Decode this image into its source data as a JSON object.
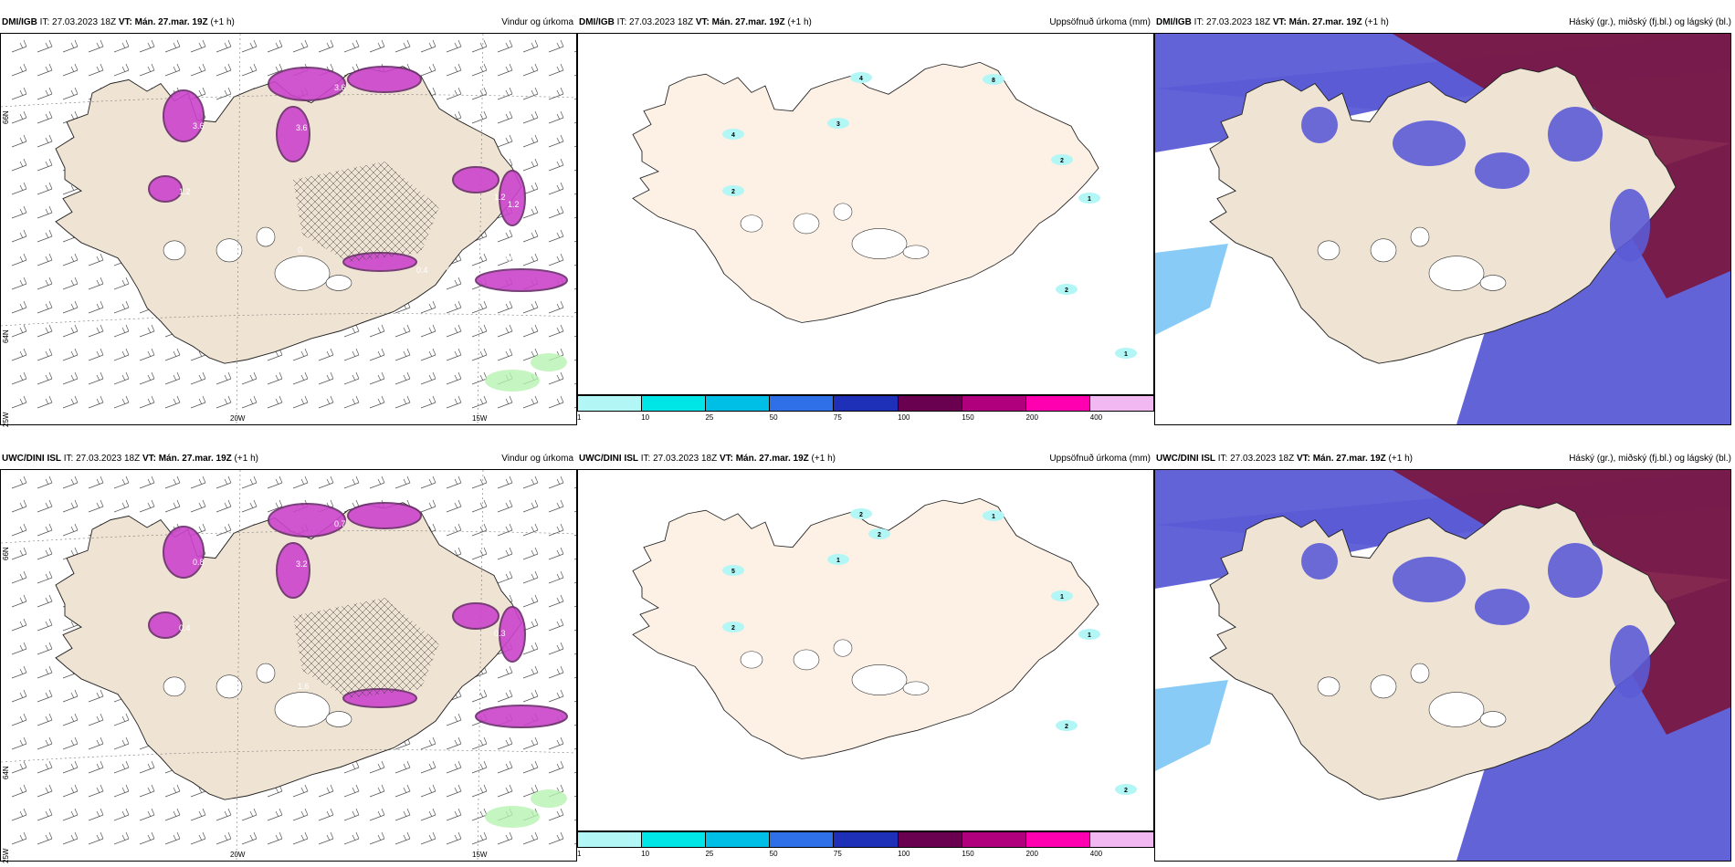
{
  "panels": [
    {
      "source": "DMI/IGB",
      "it": " IT: 27.03.2023 18Z ",
      "vt": "VT: Mán. 27.mar. 19Z",
      "lead": " (+1 h)",
      "title": "Vindur og úrkoma",
      "kind": "wind"
    },
    {
      "source": "DMI/IGB",
      "it": " IT: 27.03.2023 18Z ",
      "vt": "VT: Mán. 27.mar. 19Z",
      "lead": " (+1 h)",
      "title": "Uppsöfnuð úrkoma (mm)",
      "kind": "precip"
    },
    {
      "source": "DMI/IGB",
      "it": " IT: 27.03.2023 18Z ",
      "vt": "VT: Mán. 27.mar. 19Z",
      "lead": " (+1 h)",
      "title": "Háský (gr.), miðský (fj.bl.) og lágský (bl.)",
      "kind": "cloud"
    },
    {
      "source": "UWC/DINI ISL",
      "it": " IT: 27.03.2023 18Z ",
      "vt": "VT: Mán. 27.mar. 19Z",
      "lead": " (+1 h)",
      "title": "Vindur og úrkoma",
      "kind": "wind"
    },
    {
      "source": "UWC/DINI ISL",
      "it": " IT: 27.03.2023 18Z ",
      "vt": "VT: Mán. 27.mar. 19Z",
      "lead": " (+1 h)",
      "title": "Uppsöfnuð úrkoma (mm)",
      "kind": "precip"
    },
    {
      "source": "UWC/DINI ISL",
      "it": " IT: 27.03.2023 18Z ",
      "vt": "VT: Mán. 27.mar. 19Z",
      "lead": " (+1 h)",
      "title": "Háský (gr.), miðský (fj.bl.) og lágský (bl.)",
      "kind": "cloud"
    }
  ],
  "axes": {
    "lon_labels": [
      "20W",
      "15W"
    ],
    "lat_labels": [
      "66N",
      "64N",
      "25W"
    ]
  },
  "colorbar": {
    "ticks": [
      "1",
      "10",
      "25",
      "50",
      "75",
      "100",
      "150",
      "200",
      "400"
    ],
    "colors": [
      "#b2f6f6",
      "#00e5e5",
      "#00bfe6",
      "#2f6fe8",
      "#1e2fb8",
      "#6a0050",
      "#b0007d",
      "#ff00b0",
      "#f2b8f2"
    ]
  },
  "precip_labels_top": [
    "4",
    "4",
    "3",
    "8",
    "2",
    "1",
    "2",
    "1",
    "2"
  ],
  "precip_labels_bottom": [
    "2",
    "5",
    "1",
    "1",
    "1",
    "1",
    "2",
    "2",
    "2",
    "2"
  ],
  "wind_labels_top": [
    "3.6",
    "3.6",
    "3.6",
    "1.2",
    "1.2",
    "0.",
    "0.4",
    "0",
    "0.5",
    "1.2"
  ],
  "wind_labels_bottom": [
    "0.8",
    "0.7",
    "3.2",
    "0.4",
    "0.3",
    "1.6"
  ],
  "colors": {
    "land": "#efe3d3",
    "land_precip": "#fdf1e6",
    "cloud_high": "#7a1640",
    "cloud_mid": "#5b5bd6",
    "cloud_low": "#39a8f0",
    "green_precip": "#b7f2b0",
    "magenta": "#cc44cc",
    "dark_purple": "#6b2d6b"
  }
}
